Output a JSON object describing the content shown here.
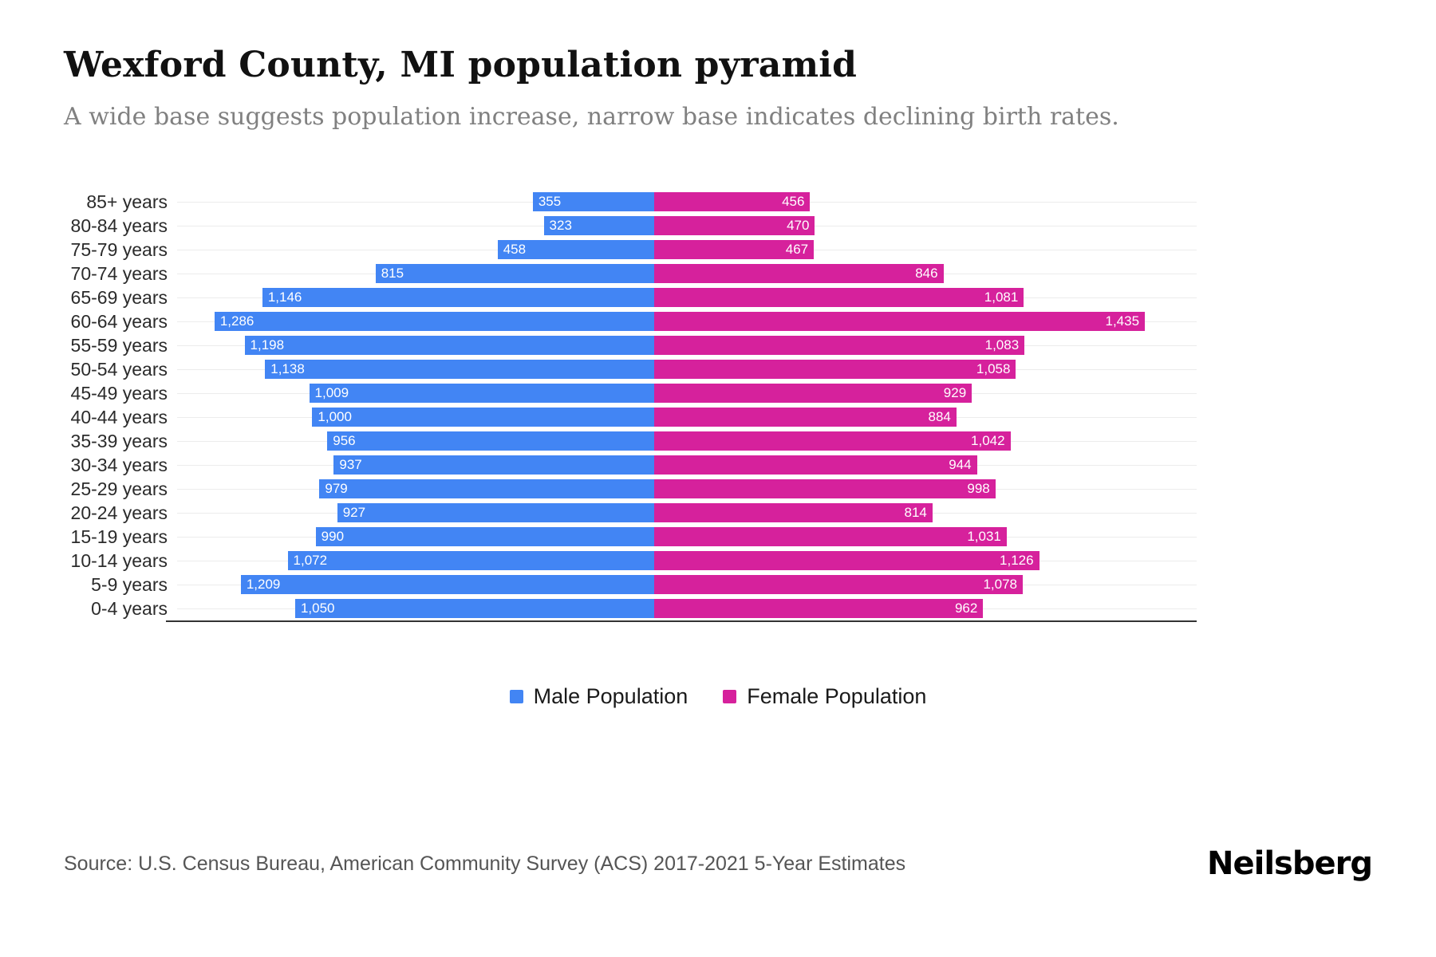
{
  "header": {
    "title": "Wexford County, MI population pyramid",
    "subtitle": "A wide base suggests population increase, narrow base indicates declining birth rates."
  },
  "chart_data": {
    "type": "bar",
    "variant": "population-pyramid",
    "orientation": "horizontal-diverging",
    "title": "Wexford County, MI population pyramid",
    "categories": [
      "85+ years",
      "80-84 years",
      "75-79 years",
      "70-74 years",
      "65-69 years",
      "60-64 years",
      "55-59 years",
      "50-54 years",
      "45-49 years",
      "40-44 years",
      "35-39 years",
      "30-34 years",
      "25-29 years",
      "20-24 years",
      "15-19 years",
      "10-14 years",
      "5-9 years",
      "0-4 years"
    ],
    "series": [
      {
        "name": "Male Population",
        "color": "#4285F4",
        "direction": "left",
        "values": [
          355,
          323,
          458,
          815,
          1146,
          1286,
          1198,
          1138,
          1009,
          1000,
          956,
          937,
          979,
          927,
          990,
          1072,
          1209,
          1050
        ]
      },
      {
        "name": "Female Population",
        "color": "#D6219C",
        "direction": "right",
        "values": [
          456,
          470,
          467,
          846,
          1081,
          1435,
          1083,
          1058,
          929,
          884,
          1042,
          944,
          998,
          814,
          1031,
          1126,
          1078,
          962
        ]
      }
    ],
    "value_labels": true,
    "xlim": [
      0,
      1500
    ],
    "grid": "horizontal-light",
    "legend_position": "bottom"
  },
  "legend": {
    "items": [
      {
        "label": "Male Population",
        "color": "#4285F4"
      },
      {
        "label": "Female Population",
        "color": "#D6219C"
      }
    ]
  },
  "footer": {
    "source": "Source: U.S. Census Bureau, American Community Survey (ACS) 2017-2021 5-Year Estimates",
    "brand": "Neilsberg"
  }
}
